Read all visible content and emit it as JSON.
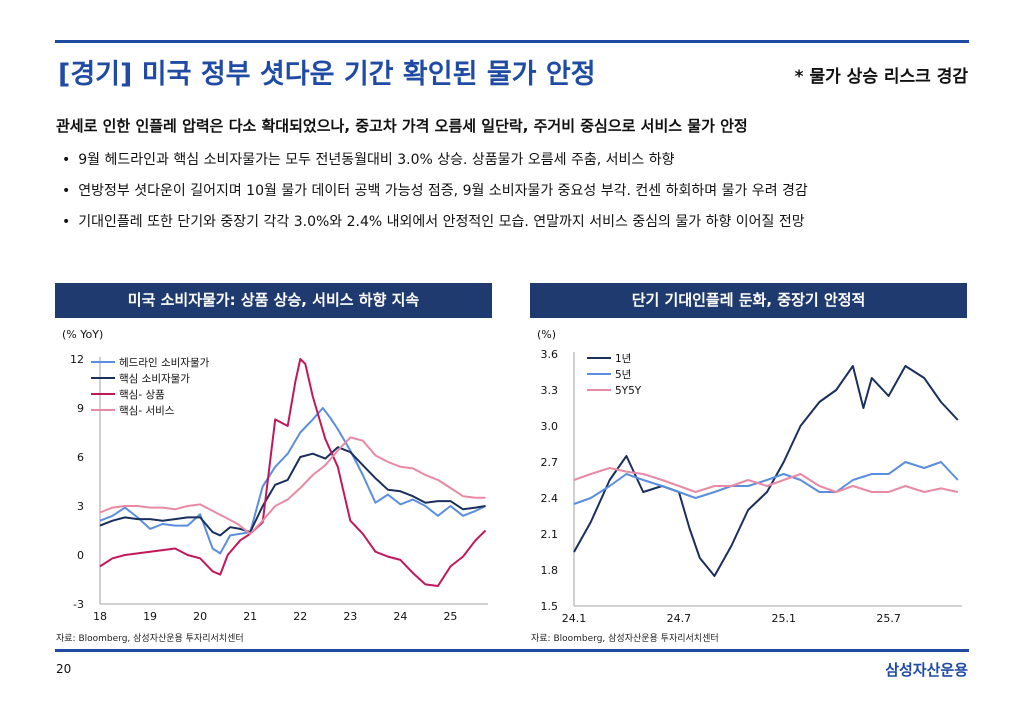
{
  "header": {
    "title": "[경기] 미국 정부 셧다운 기간 확인된 물가 안정",
    "subtitle": "* 물가 상승 리스크 경감"
  },
  "summary": {
    "headline": "관세로 인한 인플레 압력은 다소 확대되었으나, 중고차 가격 오름세 일단락, 주거비 중심으로 서비스 물가 안정",
    "bullets": [
      "9월 헤드라인과 핵심 소비자물가는 모두 전년동월대비 3.0% 상승. 상품물가 오름세 주춤, 서비스 하향",
      "연방정부 셧다운이 길어지며 10월 물가 데이터 공백 가능성 점증, 9월 소비자물가 중요성 부각. 컨센 하회하며 물가 우려 경감",
      "기대인플레 또한 단기와 중장기 각각 3.0%와 2.4% 내외에서 안정적인 모습. 연말까지 서비스 중심의 물가 하향 이어질 전망"
    ]
  },
  "footer": {
    "page": "20",
    "brand": "삼성자산운용"
  },
  "colors": {
    "accent": "#1f4ba5",
    "panel": "#1f3a6e",
    "navy": "#1b2f5e",
    "blue": "#5b8ede",
    "magenta": "#c2185b",
    "pink": "#e98aa5"
  },
  "chart_data": [
    {
      "type": "line",
      "panel_title": "미국 소비자물가: 상품 상승, 서비스 하향 지속",
      "unit": "(% YoY)",
      "source": "자료: Bloomberg, 삼성자산운용 투자리서치센터",
      "xlim": [
        2018.0,
        2025.75
      ],
      "ylim": [
        -3,
        12
      ],
      "yticks": [
        -3,
        0,
        3,
        6,
        9,
        12
      ],
      "xticks": [
        {
          "v": 2018.0,
          "label": "18"
        },
        {
          "v": 2019.0,
          "label": "19"
        },
        {
          "v": 2020.0,
          "label": "20"
        },
        {
          "v": 2021.0,
          "label": "21"
        },
        {
          "v": 2022.0,
          "label": "22"
        },
        {
          "v": 2023.0,
          "label": "23"
        },
        {
          "v": 2024.0,
          "label": "24"
        },
        {
          "v": 2025.0,
          "label": "25"
        }
      ],
      "series": [
        {
          "name": "헤드라인 소비자물가",
          "color": "#5b8ede",
          "x": [
            2018.0,
            2018.25,
            2018.5,
            2018.75,
            2019.0,
            2019.25,
            2019.5,
            2019.75,
            2020.0,
            2020.25,
            2020.4,
            2020.6,
            2020.8,
            2021.0,
            2021.25,
            2021.5,
            2021.75,
            2022.0,
            2022.25,
            2022.45,
            2022.6,
            2022.75,
            2023.0,
            2023.25,
            2023.5,
            2023.75,
            2024.0,
            2024.25,
            2024.5,
            2024.75,
            2025.0,
            2025.25,
            2025.5,
            2025.7
          ],
          "values": [
            2.1,
            2.4,
            2.9,
            2.3,
            1.6,
            1.9,
            1.8,
            1.8,
            2.5,
            0.4,
            0.1,
            1.2,
            1.3,
            1.4,
            4.2,
            5.4,
            6.2,
            7.5,
            8.3,
            9.0,
            8.4,
            7.7,
            6.4,
            4.9,
            3.2,
            3.7,
            3.1,
            3.4,
            3.0,
            2.4,
            3.0,
            2.4,
            2.7,
            3.0
          ]
        },
        {
          "name": "핵심 소비자물가",
          "color": "#1b2f5e",
          "x": [
            2018.0,
            2018.25,
            2018.5,
            2018.75,
            2019.0,
            2019.25,
            2019.5,
            2019.75,
            2020.0,
            2020.25,
            2020.4,
            2020.6,
            2020.8,
            2021.0,
            2021.25,
            2021.5,
            2021.75,
            2022.0,
            2022.25,
            2022.5,
            2022.75,
            2023.0,
            2023.25,
            2023.5,
            2023.75,
            2024.0,
            2024.25,
            2024.5,
            2024.75,
            2025.0,
            2025.25,
            2025.5,
            2025.7
          ],
          "values": [
            1.8,
            2.1,
            2.3,
            2.2,
            2.2,
            2.1,
            2.2,
            2.3,
            2.3,
            1.4,
            1.2,
            1.7,
            1.6,
            1.4,
            3.0,
            4.3,
            4.6,
            6.0,
            6.2,
            5.9,
            6.6,
            6.3,
            5.5,
            4.7,
            4.0,
            3.9,
            3.6,
            3.2,
            3.3,
            3.3,
            2.8,
            2.9,
            3.0
          ]
        },
        {
          "name": "핵심- 상품",
          "color": "#c2185b",
          "x": [
            2018.0,
            2018.25,
            2018.5,
            2018.75,
            2019.0,
            2019.25,
            2019.5,
            2019.75,
            2020.0,
            2020.25,
            2020.4,
            2020.55,
            2020.8,
            2021.0,
            2021.25,
            2021.5,
            2021.75,
            2021.9,
            2022.0,
            2022.1,
            2022.25,
            2022.5,
            2022.75,
            2023.0,
            2023.25,
            2023.5,
            2023.75,
            2024.0,
            2024.25,
            2024.5,
            2024.75,
            2025.0,
            2025.25,
            2025.5,
            2025.7
          ],
          "values": [
            -0.7,
            -0.2,
            0.0,
            0.1,
            0.2,
            0.3,
            0.4,
            0.0,
            -0.2,
            -1.0,
            -1.2,
            0.0,
            0.9,
            1.3,
            2.0,
            8.3,
            7.9,
            10.6,
            12.0,
            11.7,
            9.7,
            7.1,
            5.4,
            2.1,
            1.3,
            0.2,
            -0.1,
            -0.3,
            -1.1,
            -1.8,
            -1.9,
            -0.7,
            -0.1,
            0.9,
            1.5
          ]
        },
        {
          "name": "핵심- 서비스",
          "color": "#e98aa5",
          "x": [
            2018.0,
            2018.25,
            2018.5,
            2018.75,
            2019.0,
            2019.25,
            2019.5,
            2019.75,
            2020.0,
            2020.25,
            2020.5,
            2020.75,
            2021.0,
            2021.25,
            2021.5,
            2021.75,
            2022.0,
            2022.25,
            2022.5,
            2022.75,
            2023.0,
            2023.25,
            2023.5,
            2023.75,
            2024.0,
            2024.25,
            2024.5,
            2024.75,
            2025.0,
            2025.25,
            2025.5,
            2025.7
          ],
          "values": [
            2.6,
            2.9,
            3.0,
            3.0,
            2.9,
            2.9,
            2.8,
            3.0,
            3.1,
            2.7,
            2.3,
            1.9,
            1.3,
            2.1,
            3.0,
            3.4,
            4.1,
            4.9,
            5.5,
            6.4,
            7.2,
            7.0,
            6.1,
            5.7,
            5.4,
            5.3,
            4.9,
            4.6,
            4.1,
            3.6,
            3.5,
            3.5
          ]
        }
      ]
    },
    {
      "type": "line",
      "panel_title": "단기 기대인플레 둔화, 중장기 안정적",
      "unit": "(%)",
      "source": "자료: Bloomberg, 삼성자산운용 투자리서치센터",
      "xlim": [
        2024.0,
        2025.85
      ],
      "ylim": [
        1.5,
        3.6
      ],
      "yticks": [
        1.5,
        1.8,
        2.1,
        2.4,
        2.7,
        3.0,
        3.3,
        3.6
      ],
      "xticks": [
        {
          "v": 2024.0,
          "label": "24.1"
        },
        {
          "v": 2024.5,
          "label": "24.7"
        },
        {
          "v": 2025.0,
          "label": "25.1"
        },
        {
          "v": 2025.5,
          "label": "25.7"
        }
      ],
      "series": [
        {
          "name": "1년",
          "color": "#1b2f5e",
          "x": [
            2024.0,
            2024.08,
            2024.17,
            2024.25,
            2024.33,
            2024.42,
            2024.5,
            2024.55,
            2024.6,
            2024.67,
            2024.75,
            2024.83,
            2024.92,
            2025.0,
            2025.08,
            2025.17,
            2025.25,
            2025.33,
            2025.38,
            2025.42,
            2025.5,
            2025.58,
            2025.67,
            2025.75,
            2025.83
          ],
          "values": [
            1.95,
            2.2,
            2.55,
            2.75,
            2.45,
            2.5,
            2.45,
            2.15,
            1.9,
            1.75,
            2.0,
            2.3,
            2.45,
            2.7,
            3.0,
            3.2,
            3.3,
            3.5,
            3.15,
            3.4,
            3.25,
            3.5,
            3.4,
            3.2,
            3.05
          ]
        },
        {
          "name": "5년",
          "color": "#5b8ede",
          "x": [
            2024.0,
            2024.08,
            2024.17,
            2024.25,
            2024.33,
            2024.42,
            2024.5,
            2024.58,
            2024.67,
            2024.75,
            2024.83,
            2024.92,
            2025.0,
            2025.08,
            2025.17,
            2025.25,
            2025.33,
            2025.42,
            2025.5,
            2025.58,
            2025.67,
            2025.75,
            2025.83
          ],
          "values": [
            2.35,
            2.4,
            2.5,
            2.6,
            2.55,
            2.5,
            2.45,
            2.4,
            2.45,
            2.5,
            2.5,
            2.55,
            2.6,
            2.55,
            2.45,
            2.45,
            2.55,
            2.6,
            2.6,
            2.7,
            2.65,
            2.7,
            2.55
          ]
        },
        {
          "name": "5Y5Y",
          "color": "#e98aa5",
          "x": [
            2024.0,
            2024.08,
            2024.17,
            2024.25,
            2024.33,
            2024.42,
            2024.5,
            2024.58,
            2024.67,
            2024.75,
            2024.83,
            2024.92,
            2025.0,
            2025.08,
            2025.17,
            2025.25,
            2025.33,
            2025.42,
            2025.5,
            2025.58,
            2025.67,
            2025.75,
            2025.83
          ],
          "values": [
            2.55,
            2.6,
            2.65,
            2.62,
            2.6,
            2.55,
            2.5,
            2.45,
            2.5,
            2.5,
            2.55,
            2.5,
            2.55,
            2.6,
            2.5,
            2.45,
            2.5,
            2.45,
            2.45,
            2.5,
            2.45,
            2.48,
            2.45
          ]
        }
      ]
    }
  ]
}
